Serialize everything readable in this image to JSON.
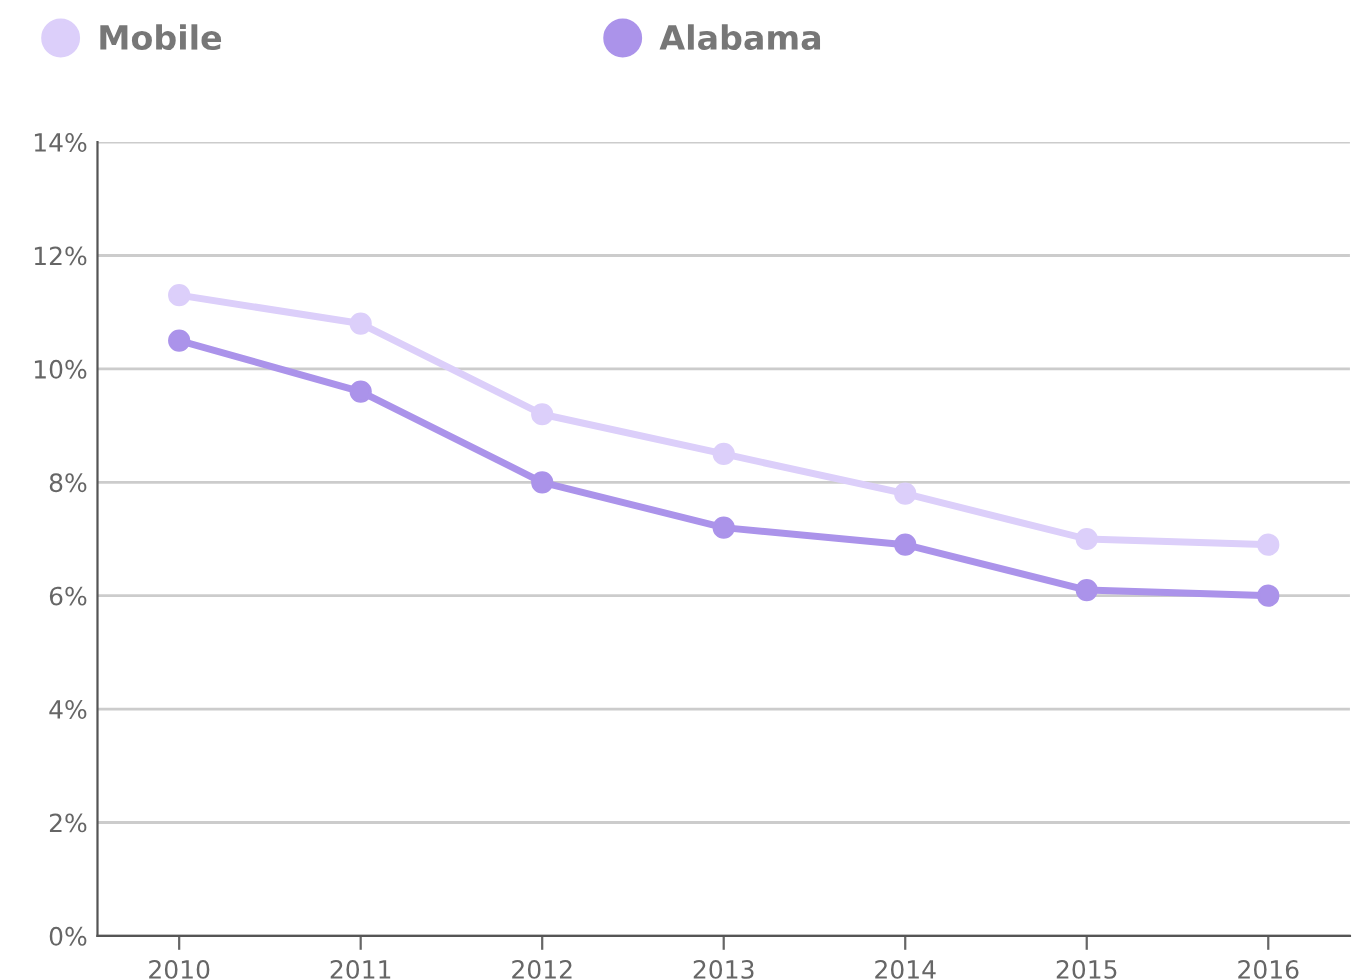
{
  "chart_data": {
    "type": "line",
    "categories": [
      "2010",
      "2011",
      "2012",
      "2013",
      "2014",
      "2015",
      "2016"
    ],
    "series": [
      {
        "name": "Mobile",
        "color": "#dccffa",
        "values": [
          11.3,
          10.8,
          9.2,
          8.5,
          7.8,
          7.0,
          6.9
        ]
      },
      {
        "name": "Alabama",
        "color": "#ab93ea",
        "values": [
          10.5,
          9.6,
          8.0,
          7.2,
          6.9,
          6.1,
          6.0
        ]
      }
    ],
    "ylim": [
      0,
      14
    ],
    "yticks": [
      {
        "value": 0,
        "label": "0%"
      },
      {
        "value": 2,
        "label": "2%"
      },
      {
        "value": 4,
        "label": "4%"
      },
      {
        "value": 6,
        "label": "6%"
      },
      {
        "value": 8,
        "label": "8%"
      },
      {
        "value": 10,
        "label": "10%"
      },
      {
        "value": 12,
        "label": "12%"
      },
      {
        "value": 14,
        "label": "14%"
      }
    ],
    "grid": "y",
    "legend": "top",
    "marker": "circle",
    "line_style": "solid"
  }
}
